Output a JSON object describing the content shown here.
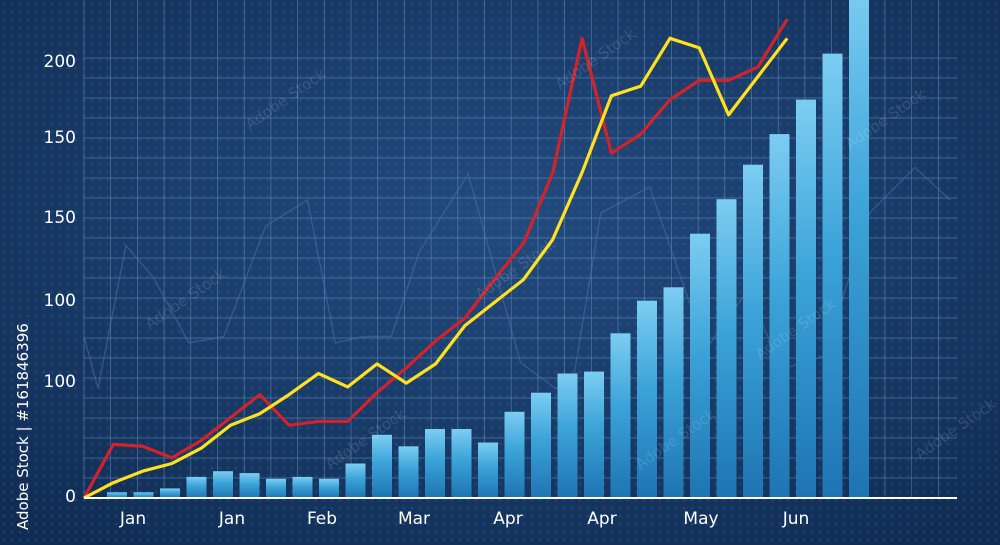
{
  "chart_data": {
    "type": "bar",
    "title": "",
    "xlabel": "",
    "ylabel": "",
    "y_tick_labels": [
      "0",
      "100",
      "100",
      "150",
      "150",
      "200"
    ],
    "x_tick_labels": [
      "Jan",
      "Jan",
      "Feb",
      "Mar",
      "Apr",
      "Apr",
      "May",
      "Jun"
    ],
    "grid": true,
    "legend": "none",
    "bars": {
      "color": "#3aa0d6",
      "values": [
        3,
        3,
        5,
        11,
        14,
        13,
        10,
        11,
        10,
        18,
        33,
        27,
        36,
        36,
        29,
        45,
        55,
        65,
        66,
        86,
        103,
        110,
        138,
        156,
        174,
        190,
        208,
        232,
        269
      ]
    },
    "series": [
      {
        "color": "#d2222a",
        "points": [
          [
            0,
            0
          ],
          [
            1,
            28
          ],
          [
            2,
            27
          ],
          [
            3,
            21
          ],
          [
            4,
            30
          ],
          [
            5,
            42
          ],
          [
            6,
            54
          ],
          [
            7,
            38
          ],
          [
            8,
            40
          ],
          [
            9,
            40
          ],
          [
            10,
            55
          ],
          [
            11,
            68
          ],
          [
            12,
            82
          ],
          [
            13,
            94
          ],
          [
            14,
            114
          ],
          [
            15,
            133
          ],
          [
            16,
            170
          ],
          [
            17,
            240
          ],
          [
            18,
            180
          ],
          [
            19,
            190
          ],
          [
            20,
            208
          ],
          [
            21,
            218
          ],
          [
            22,
            218
          ],
          [
            23,
            225
          ],
          [
            24,
            250
          ]
        ]
      },
      {
        "color": "#ffe11f",
        "points": [
          [
            0,
            0
          ],
          [
            1,
            8
          ],
          [
            2,
            14
          ],
          [
            3,
            18
          ],
          [
            4,
            26
          ],
          [
            5,
            38
          ],
          [
            6,
            44
          ],
          [
            7,
            54
          ],
          [
            8,
            65
          ],
          [
            9,
            58
          ],
          [
            10,
            70
          ],
          [
            11,
            60
          ],
          [
            12,
            70
          ],
          [
            13,
            90
          ],
          [
            14,
            102
          ],
          [
            15,
            114
          ],
          [
            16,
            135
          ],
          [
            17,
            170
          ],
          [
            18,
            210
          ],
          [
            19,
            215
          ],
          [
            20,
            240
          ],
          [
            21,
            235
          ],
          [
            22,
            200
          ],
          [
            23,
            220
          ],
          [
            24,
            240
          ]
        ]
      }
    ],
    "background_line": {
      "color": "#4d6fa3",
      "points": [
        [
          0,
          9
        ],
        [
          4,
          1
        ],
        [
          12,
          23
        ],
        [
          20,
          18
        ],
        [
          30,
          8
        ],
        [
          40,
          9
        ],
        [
          52,
          26
        ],
        [
          64,
          30
        ],
        [
          72,
          8
        ],
        [
          80,
          9
        ],
        [
          88,
          9
        ],
        [
          96,
          22
        ],
        [
          110,
          34
        ],
        [
          125,
          5
        ],
        [
          135,
          1
        ],
        [
          140,
          2
        ],
        [
          148,
          28
        ],
        [
          162,
          32
        ],
        [
          178,
          7
        ],
        [
          190,
          16
        ],
        [
          200,
          4
        ],
        [
          212,
          6
        ],
        [
          225,
          28
        ],
        [
          238,
          35
        ],
        [
          248,
          30
        ]
      ]
    }
  },
  "watermark": {
    "text": "Adobe Stock | #161846396",
    "brand": "Adobe Stock"
  }
}
